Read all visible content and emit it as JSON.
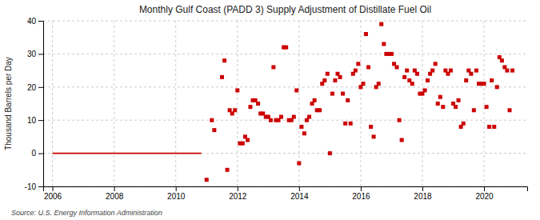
{
  "chart_data": {
    "type": "scatter",
    "title": "Monthly Gulf Coast (PADD 3) Supply Adjustment of Distillate Fuel Oil",
    "y_label": "Thousand Barrels per Day",
    "annotations": [
      "Source: U.S. Energy Information Administration"
    ],
    "xlim": [
      2005.7,
      2021.4
    ],
    "ylim": [
      -10,
      40
    ],
    "xticks": [
      2006,
      2008,
      2010,
      2012,
      2014,
      2016,
      2018,
      2020
    ],
    "yticks": [
      -10,
      0,
      10,
      20,
      30,
      40
    ],
    "grid": true,
    "series": [
      {
        "type": "line",
        "color": "#cc0000",
        "line_style": "solid",
        "x": [
          2006.0,
          2010.83
        ],
        "values": [
          0,
          0
        ]
      },
      {
        "type": "scatter",
        "color": "#cc0000",
        "marker": "square",
        "x": [
          2011.0,
          2011.17,
          2011.25,
          2011.5,
          2011.58,
          2011.67,
          2011.75,
          2011.83,
          2011.92,
          2012.0,
          2012.08,
          2012.17,
          2012.25,
          2012.33,
          2012.42,
          2012.5,
          2012.58,
          2012.67,
          2012.75,
          2012.83,
          2012.92,
          2013.0,
          2013.08,
          2013.17,
          2013.25,
          2013.33,
          2013.42,
          2013.5,
          2013.58,
          2013.67,
          2013.75,
          2013.83,
          2013.92,
          2014.0,
          2014.08,
          2014.17,
          2014.25,
          2014.33,
          2014.42,
          2014.5,
          2014.58,
          2014.67,
          2014.75,
          2014.83,
          2014.92,
          2015.0,
          2015.08,
          2015.17,
          2015.25,
          2015.33,
          2015.42,
          2015.5,
          2015.58,
          2015.67,
          2015.75,
          2015.83,
          2015.92,
          2016.0,
          2016.08,
          2016.17,
          2016.25,
          2016.33,
          2016.42,
          2016.5,
          2016.58,
          2016.67,
          2016.75,
          2016.83,
          2016.92,
          2017.0,
          2017.08,
          2017.17,
          2017.25,
          2017.33,
          2017.42,
          2017.5,
          2017.58,
          2017.67,
          2017.75,
          2017.83,
          2017.92,
          2018.0,
          2018.08,
          2018.17,
          2018.25,
          2018.33,
          2018.42,
          2018.5,
          2018.58,
          2018.67,
          2018.75,
          2018.83,
          2018.92,
          2019.0,
          2019.08,
          2019.17,
          2019.25,
          2019.33,
          2019.42,
          2019.5,
          2019.58,
          2019.67,
          2019.75,
          2019.83,
          2019.92,
          2020.0,
          2020.08,
          2020.17,
          2020.25,
          2020.33,
          2020.42,
          2020.5,
          2020.58,
          2020.67,
          2020.75,
          2020.83,
          2020.92
        ],
        "values": [
          -8,
          10,
          7,
          23,
          28,
          -5,
          13,
          12,
          13,
          19,
          3,
          3,
          5,
          4,
          14,
          16,
          16,
          15,
          12,
          12,
          11,
          11,
          10,
          26,
          10,
          10,
          11,
          32,
          32,
          10,
          10,
          11,
          19,
          -3,
          8,
          6,
          10,
          11,
          15,
          16,
          13,
          13,
          21,
          22,
          24,
          0,
          18,
          22,
          24,
          23,
          18,
          9,
          16,
          9,
          24,
          25,
          27,
          20,
          21,
          36,
          26,
          8,
          5,
          20,
          21,
          39,
          33,
          30,
          30,
          30,
          27,
          26,
          10,
          4,
          23,
          25,
          22,
          21,
          25,
          24,
          18,
          18,
          19,
          22,
          24,
          25,
          27,
          15,
          17,
          14,
          25,
          24,
          25,
          15,
          14,
          16,
          8,
          9,
          22,
          25,
          24,
          13,
          25,
          21,
          21,
          21,
          14,
          8,
          22,
          8,
          20,
          29,
          28,
          26,
          25,
          13,
          25
        ]
      }
    ]
  }
}
